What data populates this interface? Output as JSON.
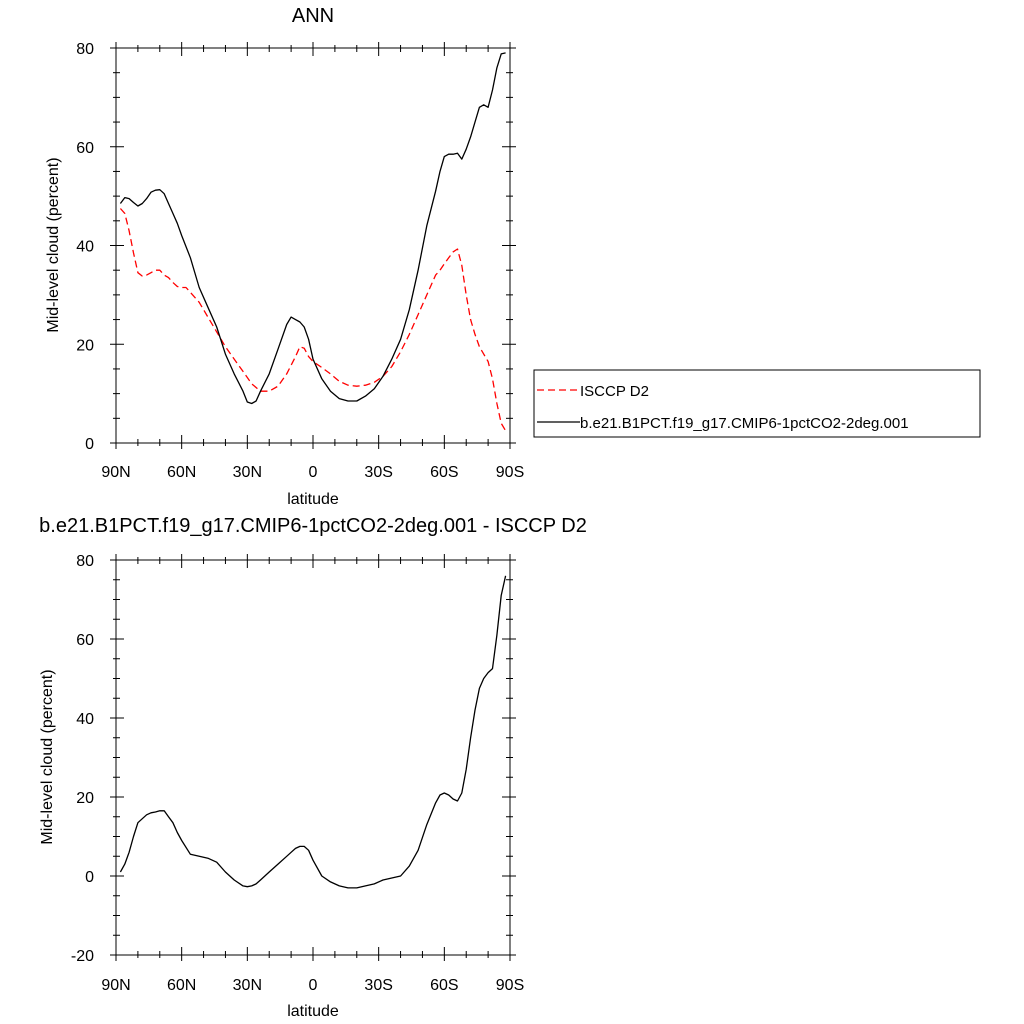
{
  "chart_data": [
    {
      "type": "line",
      "title": "ANN",
      "xlabel": "latitude",
      "ylabel": "Mid-level cloud (percent)",
      "xlim": [
        90,
        -90
      ],
      "ylim": [
        0,
        80
      ],
      "x_ticks": [
        {
          "value": 90,
          "label": "90N"
        },
        {
          "value": 60,
          "label": "60N"
        },
        {
          "value": 30,
          "label": "30N"
        },
        {
          "value": 0,
          "label": "0"
        },
        {
          "value": -30,
          "label": "30S"
        },
        {
          "value": -60,
          "label": "60S"
        },
        {
          "value": -90,
          "label": "90S"
        }
      ],
      "y_ticks": [
        0,
        20,
        40,
        60,
        80
      ],
      "legend_position": "right",
      "series": [
        {
          "name": "ISCCP D2",
          "color": "#ff0000",
          "style": "dashed",
          "points": [
            [
              88,
              47.5
            ],
            [
              86,
              46.5
            ],
            [
              84,
              43
            ],
            [
              82,
              38.5
            ],
            [
              80,
              34.5
            ],
            [
              78,
              33.8
            ],
            [
              76,
              34
            ],
            [
              74,
              34.5
            ],
            [
              72,
              35
            ],
            [
              70,
              35
            ],
            [
              68,
              34
            ],
            [
              66,
              33.5
            ],
            [
              64,
              32.5
            ],
            [
              62,
              31.7
            ],
            [
              60,
              31.5
            ],
            [
              58,
              31.5
            ],
            [
              56,
              30.5
            ],
            [
              52,
              28.5
            ],
            [
              48,
              25.5
            ],
            [
              44,
              22.5
            ],
            [
              40,
              19.5
            ],
            [
              36,
              17
            ],
            [
              32,
              14.5
            ],
            [
              28,
              12
            ],
            [
              24,
              10.5
            ],
            [
              20,
              10.5
            ],
            [
              16,
              11.5
            ],
            [
              12,
              14
            ],
            [
              8,
              17.5
            ],
            [
              6,
              19.5
            ],
            [
              4,
              19.2
            ],
            [
              2,
              17.5
            ],
            [
              0,
              16.5
            ],
            [
              -4,
              15.3
            ],
            [
              -8,
              14
            ],
            [
              -12,
              12.5
            ],
            [
              -16,
              11.7
            ],
            [
              -20,
              11.5
            ],
            [
              -24,
              11.7
            ],
            [
              -28,
              12.3
            ],
            [
              -32,
              13.5
            ],
            [
              -36,
              15.5
            ],
            [
              -40,
              18.5
            ],
            [
              -44,
              22
            ],
            [
              -48,
              26
            ],
            [
              -52,
              30
            ],
            [
              -56,
              34
            ],
            [
              -58,
              35
            ],
            [
              -60,
              36.3
            ],
            [
              -62,
              37.5
            ],
            [
              -64,
              38.7
            ],
            [
              -66,
              39.3
            ],
            [
              -68,
              36
            ],
            [
              -70,
              30
            ],
            [
              -72,
              25
            ],
            [
              -74,
              22
            ],
            [
              -76,
              19.5
            ],
            [
              -78,
              18
            ],
            [
              -80,
              16.5
            ],
            [
              -82,
              13
            ],
            [
              -84,
              8
            ],
            [
              -86,
              4
            ],
            [
              -88,
              2.5
            ]
          ]
        },
        {
          "name": "b.e21.B1PCT.f19_g17.CMIP6-1pctCO2-2deg.001",
          "color": "#000000",
          "style": "solid",
          "points": [
            [
              88,
              48.5
            ],
            [
              86,
              49.7
            ],
            [
              84,
              49.5
            ],
            [
              82,
              48.7
            ],
            [
              80,
              48
            ],
            [
              78,
              48.5
            ],
            [
              76,
              49.5
            ],
            [
              74,
              50.8
            ],
            [
              72,
              51.2
            ],
            [
              70,
              51.3
            ],
            [
              68,
              50.5
            ],
            [
              66,
              48.5
            ],
            [
              64,
              46.5
            ],
            [
              62,
              44.5
            ],
            [
              60,
              42
            ],
            [
              56,
              37.5
            ],
            [
              52,
              31.5
            ],
            [
              48,
              27.5
            ],
            [
              44,
              23.5
            ],
            [
              40,
              18
            ],
            [
              36,
              14
            ],
            [
              32,
              10.5
            ],
            [
              30,
              8.3
            ],
            [
              28,
              8
            ],
            [
              26,
              8.5
            ],
            [
              24,
              10.5
            ],
            [
              20,
              14
            ],
            [
              16,
              19
            ],
            [
              12,
              24
            ],
            [
              10,
              25.5
            ],
            [
              8,
              25
            ],
            [
              6,
              24.5
            ],
            [
              4,
              23.5
            ],
            [
              2,
              21
            ],
            [
              0,
              17
            ],
            [
              -4,
              13
            ],
            [
              -8,
              10.5
            ],
            [
              -12,
              9
            ],
            [
              -16,
              8.5
            ],
            [
              -20,
              8.5
            ],
            [
              -24,
              9.5
            ],
            [
              -28,
              11
            ],
            [
              -32,
              13.5
            ],
            [
              -36,
              17
            ],
            [
              -40,
              21
            ],
            [
              -44,
              27
            ],
            [
              -48,
              35
            ],
            [
              -52,
              44
            ],
            [
              -56,
              51
            ],
            [
              -58,
              55
            ],
            [
              -60,
              58
            ],
            [
              -62,
              58.5
            ],
            [
              -64,
              58.5
            ],
            [
              -66,
              58.7
            ],
            [
              -68,
              57.5
            ],
            [
              -70,
              59.5
            ],
            [
              -72,
              62
            ],
            [
              -74,
              65
            ],
            [
              -76,
              68
            ],
            [
              -78,
              68.5
            ],
            [
              -80,
              68
            ],
            [
              -82,
              71.5
            ],
            [
              -84,
              76
            ],
            [
              -86,
              78.8
            ],
            [
              -88,
              79
            ]
          ]
        }
      ]
    },
    {
      "type": "line",
      "title": "b.e21.B1PCT.f19_g17.CMIP6-1pctCO2-2deg.001 - ISCCP D2",
      "xlabel": "latitude",
      "ylabel": "Mid-level cloud (percent)",
      "xlim": [
        90,
        -90
      ],
      "ylim": [
        -20,
        80
      ],
      "x_ticks": [
        {
          "value": 90,
          "label": "90N"
        },
        {
          "value": 60,
          "label": "60N"
        },
        {
          "value": 30,
          "label": "30N"
        },
        {
          "value": 0,
          "label": "0"
        },
        {
          "value": -30,
          "label": "30S"
        },
        {
          "value": -60,
          "label": "60S"
        },
        {
          "value": -90,
          "label": "90S"
        }
      ],
      "y_ticks": [
        -20,
        0,
        20,
        40,
        60,
        80
      ],
      "series": [
        {
          "color": "#000000",
          "style": "solid",
          "points": [
            [
              88,
              1
            ],
            [
              86,
              3
            ],
            [
              84,
              6
            ],
            [
              82,
              10
            ],
            [
              80,
              13.5
            ],
            [
              78,
              14.5
            ],
            [
              76,
              15.5
            ],
            [
              74,
              16
            ],
            [
              72,
              16.2
            ],
            [
              70,
              16.5
            ],
            [
              68,
              16.5
            ],
            [
              66,
              15
            ],
            [
              64,
              13.5
            ],
            [
              62,
              11
            ],
            [
              60,
              9
            ],
            [
              56,
              5.5
            ],
            [
              52,
              5
            ],
            [
              48,
              4.5
            ],
            [
              44,
              3.5
            ],
            [
              40,
              1
            ],
            [
              36,
              -1
            ],
            [
              32,
              -2.5
            ],
            [
              30,
              -2.7
            ],
            [
              28,
              -2.5
            ],
            [
              26,
              -2
            ],
            [
              24,
              -1
            ],
            [
              20,
              1
            ],
            [
              16,
              3
            ],
            [
              12,
              5
            ],
            [
              10,
              6
            ],
            [
              8,
              7
            ],
            [
              6,
              7.5
            ],
            [
              4,
              7.5
            ],
            [
              2,
              6.5
            ],
            [
              0,
              4
            ],
            [
              -4,
              0
            ],
            [
              -8,
              -1.5
            ],
            [
              -12,
              -2.5
            ],
            [
              -16,
              -3
            ],
            [
              -20,
              -3
            ],
            [
              -24,
              -2.5
            ],
            [
              -28,
              -2
            ],
            [
              -32,
              -1
            ],
            [
              -36,
              -0.5
            ],
            [
              -40,
              0
            ],
            [
              -44,
              2.5
            ],
            [
              -48,
              6.5
            ],
            [
              -52,
              13
            ],
            [
              -56,
              18.5
            ],
            [
              -58,
              20.5
            ],
            [
              -60,
              21
            ],
            [
              -62,
              20.5
            ],
            [
              -64,
              19.5
            ],
            [
              -66,
              19
            ],
            [
              -68,
              21
            ],
            [
              -70,
              27
            ],
            [
              -72,
              35
            ],
            [
              -74,
              42
            ],
            [
              -76,
              47.5
            ],
            [
              -78,
              50
            ],
            [
              -80,
              51.5
            ],
            [
              -82,
              52.5
            ],
            [
              -84,
              61
            ],
            [
              -86,
              71
            ],
            [
              -88,
              76
            ]
          ]
        }
      ]
    }
  ]
}
